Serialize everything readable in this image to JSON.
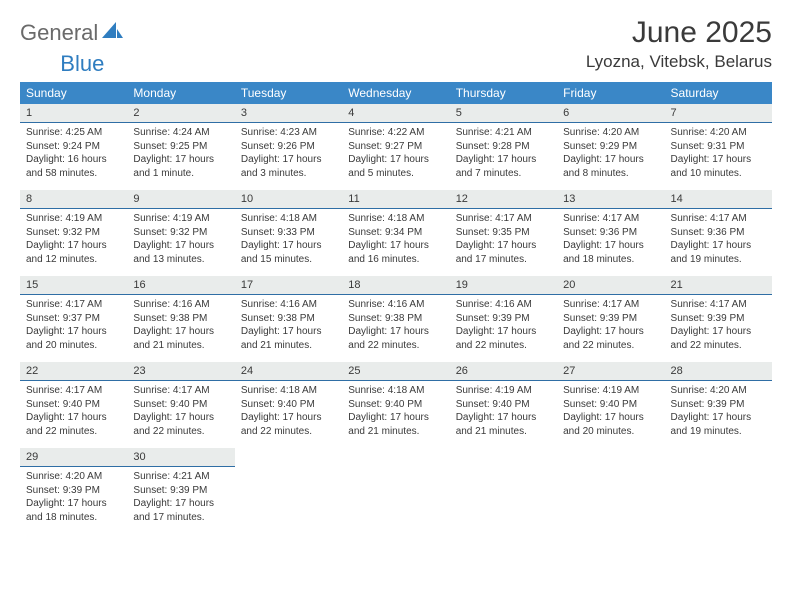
{
  "brand": {
    "part1": "General",
    "part2": "Blue"
  },
  "title": "June 2025",
  "location": "Lyozna, Vitebsk, Belarus",
  "colors": {
    "header_bg": "#3a87c7",
    "header_text": "#ffffff",
    "daynum_bg": "#e9eceb",
    "daynum_border": "#2f6ea5",
    "text": "#3a3a3a",
    "brand_gray": "#6a6a6a",
    "brand_blue": "#2f7dc0"
  },
  "weekdays": [
    "Sunday",
    "Monday",
    "Tuesday",
    "Wednesday",
    "Thursday",
    "Friday",
    "Saturday"
  ],
  "weeks": [
    [
      {
        "n": "1",
        "sr": "4:25 AM",
        "ss": "9:24 PM",
        "dl": "16 hours and 58 minutes."
      },
      {
        "n": "2",
        "sr": "4:24 AM",
        "ss": "9:25 PM",
        "dl": "17 hours and 1 minute."
      },
      {
        "n": "3",
        "sr": "4:23 AM",
        "ss": "9:26 PM",
        "dl": "17 hours and 3 minutes."
      },
      {
        "n": "4",
        "sr": "4:22 AM",
        "ss": "9:27 PM",
        "dl": "17 hours and 5 minutes."
      },
      {
        "n": "5",
        "sr": "4:21 AM",
        "ss": "9:28 PM",
        "dl": "17 hours and 7 minutes."
      },
      {
        "n": "6",
        "sr": "4:20 AM",
        "ss": "9:29 PM",
        "dl": "17 hours and 8 minutes."
      },
      {
        "n": "7",
        "sr": "4:20 AM",
        "ss": "9:31 PM",
        "dl": "17 hours and 10 minutes."
      }
    ],
    [
      {
        "n": "8",
        "sr": "4:19 AM",
        "ss": "9:32 PM",
        "dl": "17 hours and 12 minutes."
      },
      {
        "n": "9",
        "sr": "4:19 AM",
        "ss": "9:32 PM",
        "dl": "17 hours and 13 minutes."
      },
      {
        "n": "10",
        "sr": "4:18 AM",
        "ss": "9:33 PM",
        "dl": "17 hours and 15 minutes."
      },
      {
        "n": "11",
        "sr": "4:18 AM",
        "ss": "9:34 PM",
        "dl": "17 hours and 16 minutes."
      },
      {
        "n": "12",
        "sr": "4:17 AM",
        "ss": "9:35 PM",
        "dl": "17 hours and 17 minutes."
      },
      {
        "n": "13",
        "sr": "4:17 AM",
        "ss": "9:36 PM",
        "dl": "17 hours and 18 minutes."
      },
      {
        "n": "14",
        "sr": "4:17 AM",
        "ss": "9:36 PM",
        "dl": "17 hours and 19 minutes."
      }
    ],
    [
      {
        "n": "15",
        "sr": "4:17 AM",
        "ss": "9:37 PM",
        "dl": "17 hours and 20 minutes."
      },
      {
        "n": "16",
        "sr": "4:16 AM",
        "ss": "9:38 PM",
        "dl": "17 hours and 21 minutes."
      },
      {
        "n": "17",
        "sr": "4:16 AM",
        "ss": "9:38 PM",
        "dl": "17 hours and 21 minutes."
      },
      {
        "n": "18",
        "sr": "4:16 AM",
        "ss": "9:38 PM",
        "dl": "17 hours and 22 minutes."
      },
      {
        "n": "19",
        "sr": "4:16 AM",
        "ss": "9:39 PM",
        "dl": "17 hours and 22 minutes."
      },
      {
        "n": "20",
        "sr": "4:17 AM",
        "ss": "9:39 PM",
        "dl": "17 hours and 22 minutes."
      },
      {
        "n": "21",
        "sr": "4:17 AM",
        "ss": "9:39 PM",
        "dl": "17 hours and 22 minutes."
      }
    ],
    [
      {
        "n": "22",
        "sr": "4:17 AM",
        "ss": "9:40 PM",
        "dl": "17 hours and 22 minutes."
      },
      {
        "n": "23",
        "sr": "4:17 AM",
        "ss": "9:40 PM",
        "dl": "17 hours and 22 minutes."
      },
      {
        "n": "24",
        "sr": "4:18 AM",
        "ss": "9:40 PM",
        "dl": "17 hours and 22 minutes."
      },
      {
        "n": "25",
        "sr": "4:18 AM",
        "ss": "9:40 PM",
        "dl": "17 hours and 21 minutes."
      },
      {
        "n": "26",
        "sr": "4:19 AM",
        "ss": "9:40 PM",
        "dl": "17 hours and 21 minutes."
      },
      {
        "n": "27",
        "sr": "4:19 AM",
        "ss": "9:40 PM",
        "dl": "17 hours and 20 minutes."
      },
      {
        "n": "28",
        "sr": "4:20 AM",
        "ss": "9:39 PM",
        "dl": "17 hours and 19 minutes."
      }
    ],
    [
      {
        "n": "29",
        "sr": "4:20 AM",
        "ss": "9:39 PM",
        "dl": "17 hours and 18 minutes."
      },
      {
        "n": "30",
        "sr": "4:21 AM",
        "ss": "9:39 PM",
        "dl": "17 hours and 17 minutes."
      },
      null,
      null,
      null,
      null,
      null
    ]
  ],
  "labels": {
    "sunrise": "Sunrise: ",
    "sunset": "Sunset: ",
    "daylight": "Daylight: "
  }
}
